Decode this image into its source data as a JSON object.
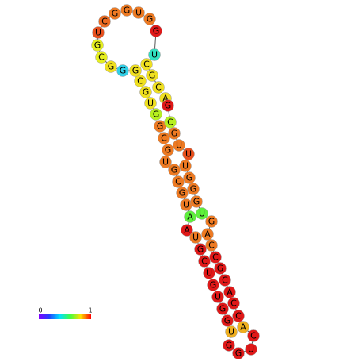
{
  "nodes": [
    {
      "label": "A",
      "color": "#e01818"
    },
    {
      "label": "A",
      "color": "#5ef03c"
    },
    {
      "label": "U",
      "color": "#ee7a22"
    },
    {
      "label": "G",
      "color": "#ee7a22"
    },
    {
      "label": "C",
      "color": "#ee7a22"
    },
    {
      "label": "G",
      "color": "#ee7a22"
    },
    {
      "label": "U",
      "color": "#ee7a22"
    },
    {
      "label": "G",
      "color": "#ee7a22"
    },
    {
      "label": "C",
      "color": "#ee7a22"
    },
    {
      "label": "G",
      "color": "#ee7a22"
    },
    {
      "label": "G",
      "color": "#b6f020"
    },
    {
      "label": "U",
      "color": "#f0e020"
    },
    {
      "label": "G",
      "color": "#f0e020"
    },
    {
      "label": "C",
      "color": "#f0e020"
    },
    {
      "label": "G",
      "color": "#f0e020"
    },
    {
      "label": "G",
      "color": "#30d0e8"
    },
    {
      "label": "G",
      "color": "#f0e020"
    },
    {
      "label": "C",
      "color": "#e6f020"
    },
    {
      "label": "G",
      "color": "#e6f020"
    },
    {
      "label": "U",
      "color": "#e8501e"
    },
    {
      "label": "C",
      "color": "#ec6a20"
    },
    {
      "label": "G",
      "color": "#ee7a22"
    },
    {
      "label": "G",
      "color": "#ee7a22"
    },
    {
      "label": "U",
      "color": "#ee7a22"
    },
    {
      "label": "G",
      "color": "#ee7a22"
    },
    {
      "label": "G",
      "color": "#e01818"
    },
    {
      "label": "U",
      "color": "#30e0c0"
    },
    {
      "label": "C",
      "color": "#f0e020"
    },
    {
      "label": "G",
      "color": "#f0e020"
    },
    {
      "label": "C",
      "color": "#f0e020"
    },
    {
      "label": "A",
      "color": "#f0e020"
    },
    {
      "label": "G",
      "color": "#e01818"
    },
    {
      "label": "C",
      "color": "#b6f020"
    },
    {
      "label": "G",
      "color": "#ee7a22"
    },
    {
      "label": "U",
      "color": "#ee7a22"
    },
    {
      "label": "U",
      "color": "#e8501e"
    },
    {
      "label": "U",
      "color": "#ee7a22"
    },
    {
      "label": "G",
      "color": "#ee7a22"
    },
    {
      "label": "G",
      "color": "#ee7a22"
    },
    {
      "label": "G",
      "color": "#ee7a22"
    },
    {
      "label": "U",
      "color": "#5ef03c"
    },
    {
      "label": "G",
      "color": "#ee7a22"
    },
    {
      "label": "A",
      "color": "#ee7a22"
    },
    {
      "label": "C",
      "color": "#ee7a22"
    },
    {
      "label": "C",
      "color": "#e01818"
    },
    {
      "label": "G",
      "color": "#e01818"
    },
    {
      "label": "C",
      "color": "#e01818"
    },
    {
      "label": "A",
      "color": "#e01818"
    },
    {
      "label": "C",
      "color": "#e01818"
    },
    {
      "label": "C",
      "color": "#e01818"
    },
    {
      "label": "A",
      "color": "#f0b020"
    },
    {
      "label": "C",
      "color": "#e01818"
    },
    {
      "label": "U",
      "color": "#e01818"
    },
    {
      "label": "G",
      "color": "#e01818"
    },
    {
      "label": "G",
      "color": "#e01818"
    },
    {
      "label": "U",
      "color": "#f0b020"
    },
    {
      "label": "G",
      "color": "#e01818"
    },
    {
      "label": "G",
      "color": "#e01818"
    },
    {
      "label": "U",
      "color": "#e01818"
    },
    {
      "label": "G",
      "color": "#e01818"
    },
    {
      "label": "U",
      "color": "#e01818"
    },
    {
      "label": "C",
      "color": "#e01818"
    },
    {
      "label": "G",
      "color": "#e01818"
    },
    {
      "label": "U",
      "color": "#ee7a22"
    }
  ],
  "legend": {
    "min": "0",
    "max": "1"
  }
}
